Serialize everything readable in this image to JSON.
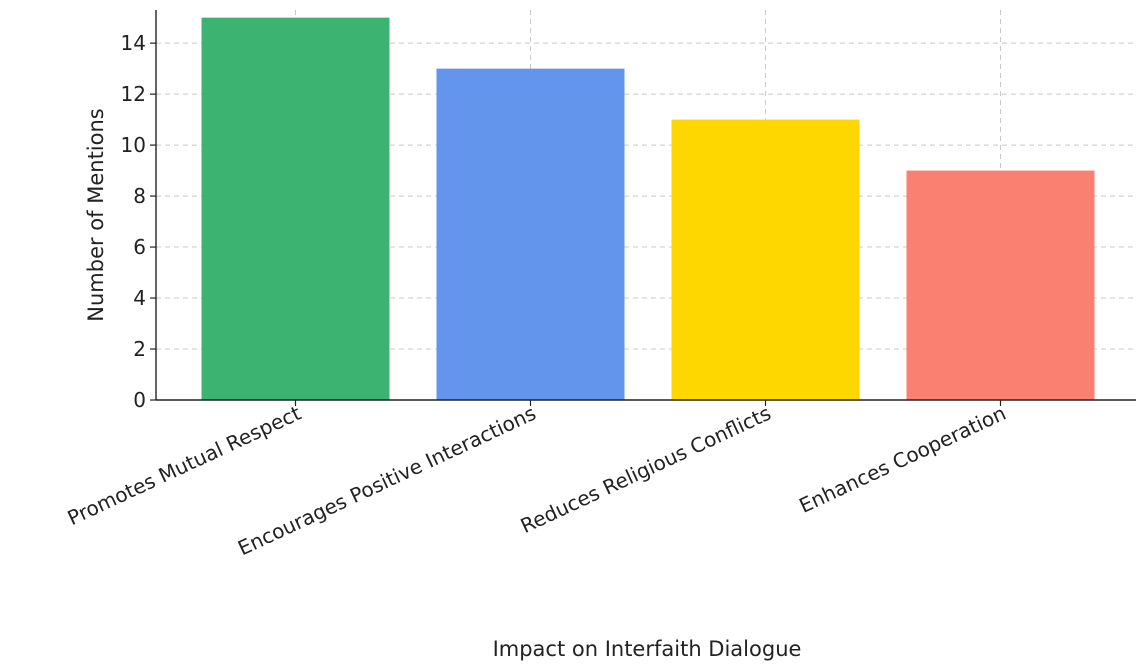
{
  "chart_data": {
    "type": "bar",
    "title": "",
    "xlabel": "Impact on Interfaith Dialogue",
    "ylabel": "Number of Mentions",
    "categories": [
      "Promotes Mutual Respect",
      "Encourages Positive Interactions",
      "Reduces Religious Conflicts",
      "Enhances Cooperation"
    ],
    "values": [
      15,
      13,
      11,
      9
    ],
    "colors": [
      "#3cb371",
      "#6495ed",
      "#ffd700",
      "#fa8072"
    ],
    "ylim": [
      0,
      15.3
    ],
    "yticks": [
      0,
      2,
      4,
      6,
      8,
      10,
      12,
      14
    ],
    "grid": true,
    "legend": "none"
  }
}
